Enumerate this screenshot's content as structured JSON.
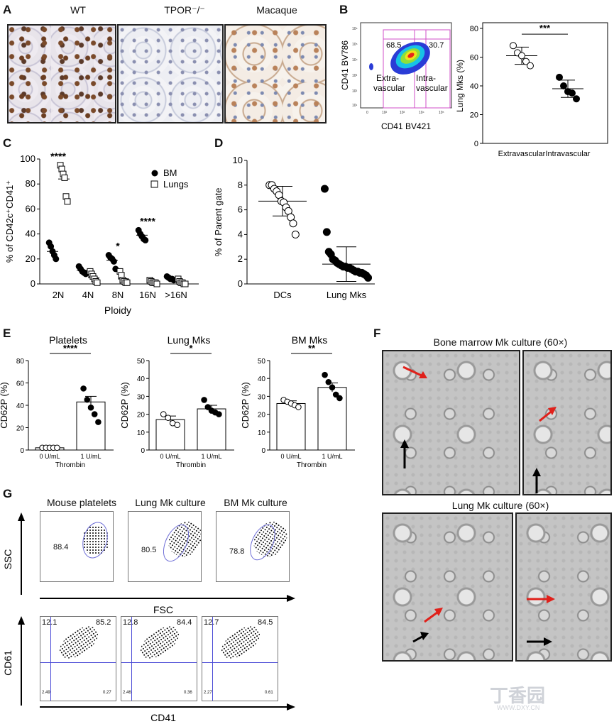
{
  "panel_A": {
    "label": "A",
    "titles": [
      "WT",
      "TPOR⁻/⁻",
      "Macaque"
    ]
  },
  "panel_B": {
    "label": "B",
    "flow": {
      "xlabel": "CD41 BV421",
      "ylabel": "CD41 BV786",
      "gate_left_pct": "68.5",
      "gate_right_pct": "30.7",
      "left_text": "Extra-\nvascular",
      "right_text": "Intra-\nvascular",
      "x_ticks": [
        "0",
        "10²",
        "10³",
        "10⁴",
        "10⁵"
      ],
      "y_ticks": [
        "10¹",
        "10²",
        "10³",
        "10⁴",
        "10⁵",
        "10⁶"
      ]
    }
  },
  "panel_C": {
    "label": "C"
  },
  "panel_D": {
    "label": "D"
  },
  "panel_E": {
    "label": "E"
  },
  "panel_F": {
    "label": "F",
    "title_top": "Bone marrow Mk culture (60×)",
    "title_bottom": "Lung Mk culture (60×)"
  },
  "panel_G": {
    "label": "G",
    "titles": [
      "Mouse platelets",
      "Lung Mk culture",
      "BM Mk culture"
    ],
    "top_row": {
      "ylabel": "SSC",
      "xlabel": "FSC",
      "gates": [
        "88.4",
        "80.5",
        "78.8"
      ]
    },
    "bottom_row": {
      "ylabel": "CD61",
      "xlabel": "CD41",
      "quadrants": [
        {
          "ul": "12.1",
          "ur": "85.2",
          "ll": "2.49",
          "lr": "0.27"
        },
        {
          "ul": "12.8",
          "ur": "84.4",
          "ll": "2.46",
          "lr": "0.36"
        },
        {
          "ul": "12.7",
          "ur": "84.5",
          "ll": "2.27",
          "lr": "0.61"
        }
      ]
    }
  },
  "watermark": {
    "text": "丁香园",
    "url": "WWW.DXY.CN"
  },
  "chart_data": [
    {
      "id": "B_scatter",
      "type": "scatter",
      "ylabel": "Lung Mks (%)",
      "ylim": [
        0,
        80
      ],
      "yticks": [
        0,
        20,
        40,
        60,
        80
      ],
      "categories": [
        "Extravascular",
        "Intravascular"
      ],
      "significance": "***",
      "series": [
        {
          "values": [
            68,
            63,
            61,
            57,
            54
          ],
          "mean": 61,
          "sd": 6,
          "marker": "open-circle"
        },
        {
          "values": [
            46,
            40,
            36,
            35,
            31
          ],
          "mean": 38,
          "sd": 6,
          "marker": "filled-circle"
        }
      ]
    },
    {
      "id": "C_ploidy",
      "type": "scatter",
      "xlabel": "Ploidy",
      "ylabel": "% of CD42c⁺CD41⁺",
      "ylim": [
        0,
        100
      ],
      "yticks": [
        0,
        20,
        40,
        60,
        80,
        100
      ],
      "categories": [
        "2N",
        "4N",
        "8N",
        "16N",
        ">16N"
      ],
      "significance": [
        "****",
        "",
        "*",
        "****",
        ""
      ],
      "legend": [
        "BM",
        "Lungs"
      ],
      "series": [
        {
          "name": "BM",
          "marker": "filled-circle",
          "values": [
            [
              33,
              30,
              26,
              23,
              20
            ],
            [
              14,
              12,
              10,
              9,
              8
            ],
            [
              23,
              21,
              20,
              18,
              12
            ],
            [
              43,
              40,
              38,
              36,
              35
            ],
            [
              6,
              5,
              4,
              4,
              3
            ]
          ],
          "means": [
            26,
            11,
            19,
            39,
            5
          ]
        },
        {
          "name": "Lungs",
          "marker": "open-square",
          "values": [
            [
              95,
              92,
              88,
              85,
              70,
              66
            ],
            [
              10,
              8,
              6,
              4,
              2,
              1
            ],
            [
              10,
              7,
              3,
              2,
              1,
              1
            ],
            [
              3,
              2,
              1,
              1,
              1,
              0
            ],
            [
              4,
              2,
              1,
              1,
              0,
              0
            ]
          ],
          "means": [
            84,
            5,
            4,
            1,
            1
          ]
        }
      ]
    },
    {
      "id": "D_parent",
      "type": "scatter",
      "ylabel": "% of Parent gate",
      "ylim": [
        0,
        10
      ],
      "yticks": [
        0,
        2,
        4,
        6,
        8,
        10
      ],
      "categories": [
        "DCs",
        "Lung Mks"
      ],
      "series": [
        {
          "marker": "open-circle",
          "values": [
            8.0,
            8.0,
            7.7,
            7.5,
            7.2,
            6.7,
            6.6,
            6.2,
            5.9,
            5.4,
            4.9,
            4.0
          ],
          "mean": 6.7,
          "sd": 1.2
        },
        {
          "marker": "filled-circle",
          "values": [
            7.7,
            4.2,
            2.6,
            2.4,
            2.0,
            1.9,
            1.7,
            1.6,
            1.5,
            1.4,
            1.4,
            1.3,
            1.3,
            1.2,
            1.1,
            1.0,
            1.0,
            0.9,
            0.9,
            0.8,
            0.7,
            0.5
          ],
          "mean": 1.6,
          "sd": 1.4
        }
      ]
    },
    {
      "id": "E_platelets",
      "type": "bar",
      "title": "Platelets",
      "ylabel": "CD62P (%)",
      "xlabel": "Thrombin",
      "ylim": [
        0,
        80
      ],
      "yticks": [
        0,
        20,
        40,
        60,
        80
      ],
      "categories": [
        "0 U/mL",
        "1 U/mL"
      ],
      "significance": "****",
      "values": [
        2,
        43
      ],
      "errors": [
        0.5,
        5
      ],
      "points": [
        [
          2,
          2,
          2,
          2,
          2
        ],
        [
          55,
          45,
          38,
          32,
          25
        ]
      ],
      "markers": [
        "open-circle",
        "filled-circle"
      ]
    },
    {
      "id": "E_lung",
      "type": "bar",
      "title": "Lung Mks",
      "ylabel": "CD62P (%)",
      "xlabel": "Thrombin",
      "ylim": [
        0,
        50
      ],
      "yticks": [
        0,
        10,
        20,
        30,
        40,
        50
      ],
      "categories": [
        "0 U/mL",
        "1 U/mL"
      ],
      "significance": "*",
      "values": [
        17,
        23
      ],
      "errors": [
        2,
        2
      ],
      "points": [
        [
          20,
          18,
          15,
          14
        ],
        [
          28,
          24,
          22,
          21,
          20
        ]
      ],
      "markers": [
        "open-circle",
        "filled-circle"
      ]
    },
    {
      "id": "E_bm",
      "type": "bar",
      "title": "BM Mks",
      "ylabel": "CD62P (%)",
      "xlabel": "Thrombin",
      "ylim": [
        0,
        50
      ],
      "yticks": [
        0,
        10,
        20,
        30,
        40,
        50
      ],
      "categories": [
        "0 U/mL",
        "1 U/mL"
      ],
      "significance": "**",
      "values": [
        26,
        35
      ],
      "errors": [
        1.5,
        2.5
      ],
      "points": [
        [
          28,
          27,
          26,
          25,
          24
        ],
        [
          42,
          38,
          35,
          31,
          29
        ]
      ],
      "markers": [
        "open-circle",
        "filled-circle"
      ]
    }
  ]
}
